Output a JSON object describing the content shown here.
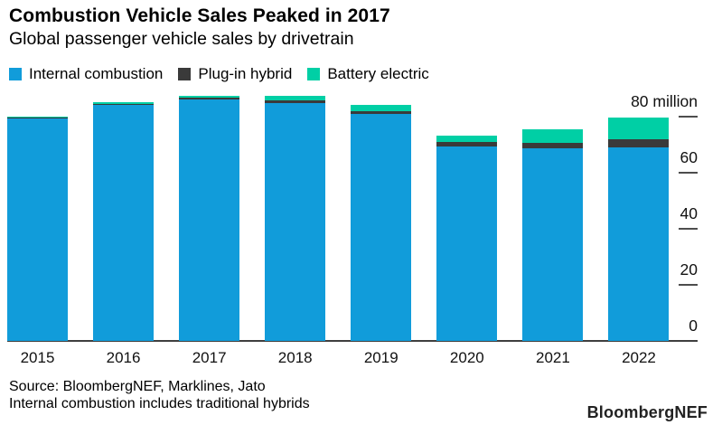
{
  "header": {
    "title": "Combustion Vehicle Sales Peaked in 2017",
    "subtitle": "Global passenger vehicle sales by drivetrain"
  },
  "chart_data": {
    "type": "bar",
    "stacked": true,
    "title": "Combustion Vehicle Sales Peaked in 2017",
    "subtitle": "Global passenger vehicle sales by drivetrain",
    "unit": "million vehicles",
    "categories": [
      "2015",
      "2016",
      "2017",
      "2018",
      "2019",
      "2020",
      "2021",
      "2022"
    ],
    "series": [
      {
        "name": "Internal combustion",
        "color": "#119cda",
        "values": [
          79.6,
          84.2,
          86.2,
          84.9,
          81.0,
          69.4,
          68.6,
          69.0
        ]
      },
      {
        "name": "Plug-in hybrid",
        "color": "#3a3a3a",
        "values": [
          0.2,
          0.5,
          0.6,
          0.9,
          1.0,
          1.7,
          1.9,
          3.1
        ]
      },
      {
        "name": "Battery electric",
        "color": "#00cfa5",
        "values": [
          0.3,
          0.4,
          0.7,
          1.7,
          2.2,
          2.1,
          4.9,
          7.7
        ]
      }
    ],
    "y_axis": {
      "side": "right",
      "ticks": [
        0,
        20,
        40,
        60,
        80
      ],
      "max": 80,
      "top_label": "80 million"
    },
    "xlabel": "",
    "ylabel": "",
    "legend_position": "top-left",
    "grid": false
  },
  "footer": {
    "source_line1": "Source: BloombergNEF, Marklines, Jato",
    "source_line2": "Internal combustion includes traditional hybrids",
    "brand": "BloombergNEF"
  }
}
